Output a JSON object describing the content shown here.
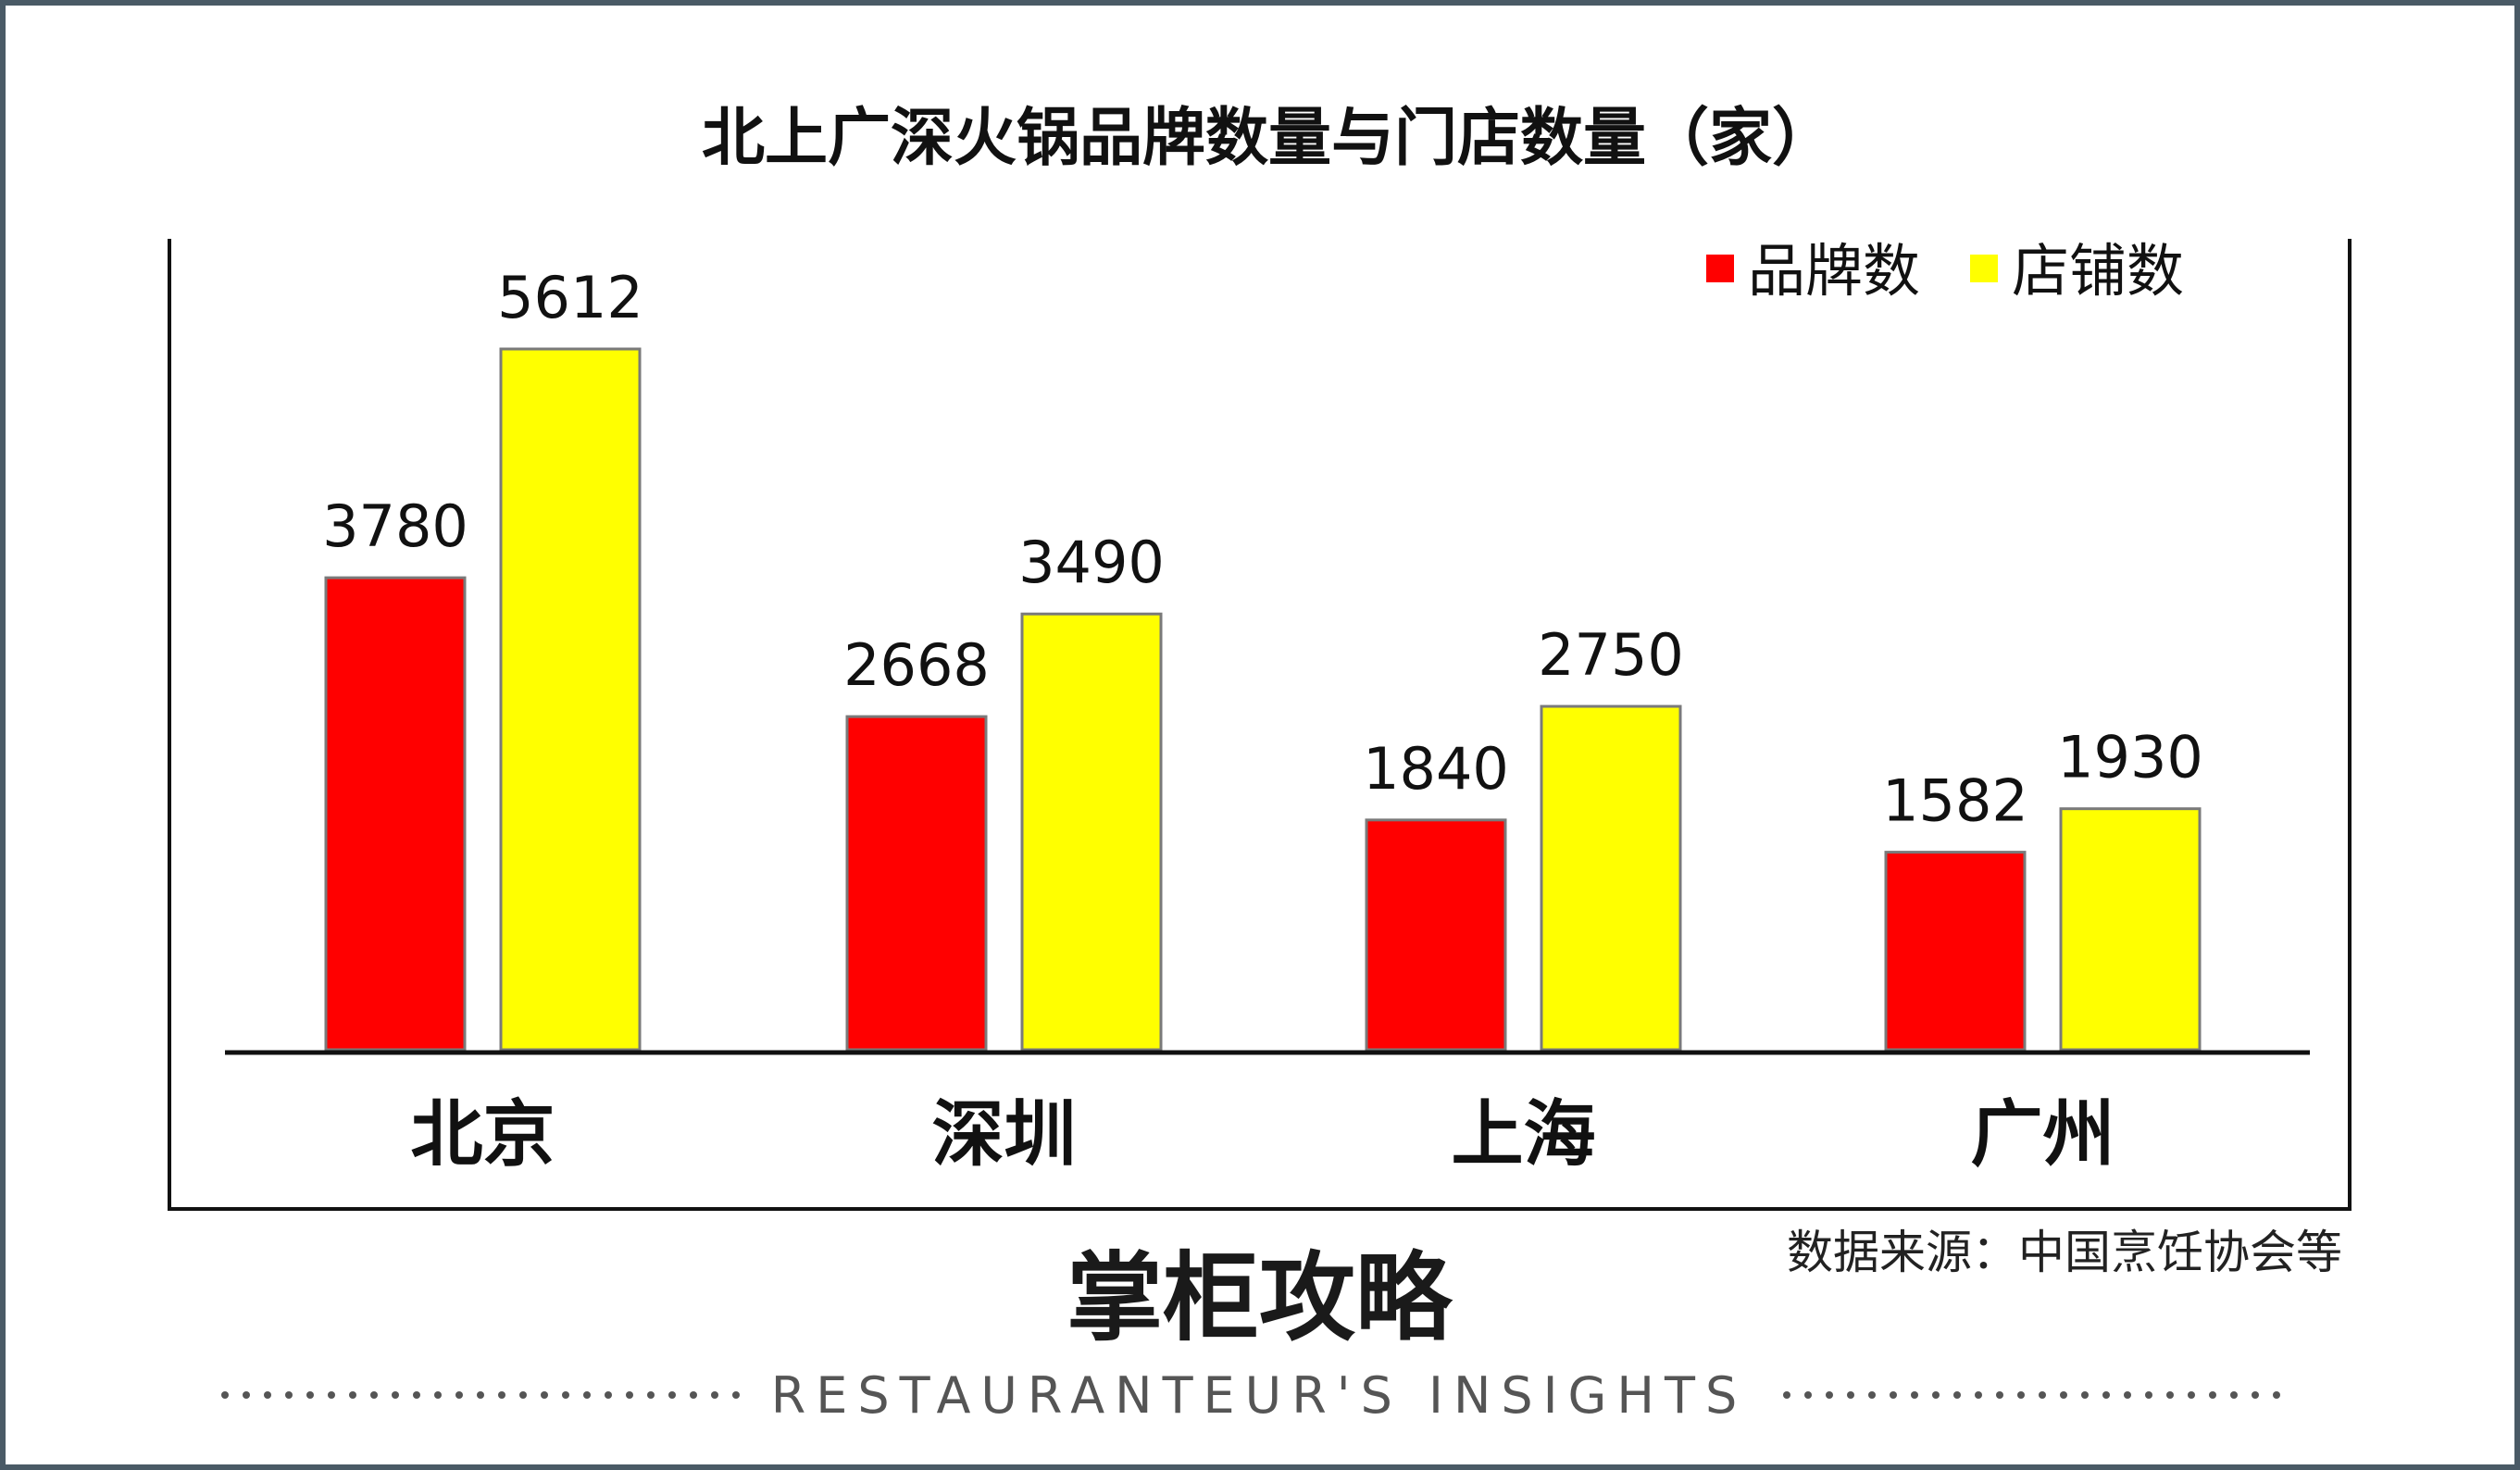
{
  "chart_data": {
    "type": "bar",
    "title": "北上广深火锅品牌数量与门店数量（家）",
    "categories": [
      "北京",
      "深圳",
      "上海",
      "广州"
    ],
    "series": [
      {
        "name": "品牌数",
        "color": "#ff0000",
        "values": [
          3780,
          2668,
          1840,
          1582
        ]
      },
      {
        "name": "店铺数",
        "color": "#ffff00",
        "values": [
          5612,
          3490,
          2750,
          1930
        ]
      }
    ],
    "legend_position": "top-right",
    "grid": false
  },
  "source_note": "数据来源：中国烹饪协会等",
  "brand": "掌柜攻略",
  "tagline": "RESTAURANTEUR'S   INSIGHTS",
  "colors": {
    "frame": "#4a5a66",
    "axis": "#111111",
    "bar_outline": "#7a7a7a"
  }
}
